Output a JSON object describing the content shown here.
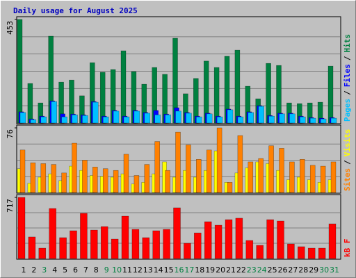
{
  "chart_data": {
    "type": "bar",
    "title": "Daily usage for August 2025",
    "categories": [
      "1",
      "2",
      "3",
      "4",
      "5",
      "6",
      "7",
      "8",
      "9",
      "10",
      "11",
      "12",
      "13",
      "14",
      "15",
      "16",
      "17",
      "18",
      "19",
      "20",
      "21",
      "22",
      "23",
      "24",
      "25",
      "26",
      "27",
      "28",
      "29",
      "30",
      "31"
    ],
    "category_colors": [
      "#000000",
      "#000000",
      "#008040",
      "#000000",
      "#000000",
      "#000000",
      "#000000",
      "#000000",
      "#008040",
      "#008040",
      "#000000",
      "#000000",
      "#000000",
      "#000000",
      "#000000",
      "#008040",
      "#008040",
      "#000000",
      "#000000",
      "#000000",
      "#000000",
      "#000000",
      "#008040",
      "#008040",
      "#000000",
      "#000000",
      "#000000",
      "#000000",
      "#000000",
      "#008040",
      "#008040"
    ],
    "legend_separator": "/",
    "panels": [
      {
        "ylim": [
          0,
          453
        ],
        "yticks": [
          453
        ],
        "series": [
          {
            "name": "Hits",
            "color": "#008040",
            "values": [
              453,
              173,
              88,
              380,
              179,
              188,
              119,
              264,
              222,
              234,
              316,
              225,
              170,
              243,
              213,
              371,
              128,
              195,
              271,
              243,
              292,
              319,
              161,
              106,
              261,
              252,
              88,
              85,
              88,
              91,
              249
            ]
          },
          {
            "name": "Files",
            "color": "#0000ff",
            "values": [
              49,
              18,
              30,
              97,
              40,
              39,
              36,
              94,
              30,
              55,
              30,
              55,
              46,
              55,
              39,
              67,
              46,
              30,
              43,
              30,
              61,
              30,
              49,
              76,
              33,
              43,
              43,
              30,
              24,
              21,
              24
            ]
          },
          {
            "name": "Pages",
            "color": "#00c0ff",
            "values": [
              46,
              15,
              27,
              94,
              27,
              36,
              33,
              91,
              27,
              52,
              27,
              52,
              43,
              36,
              36,
              52,
              43,
              27,
              40,
              27,
              58,
              27,
              46,
              73,
              30,
              40,
              40,
              27,
              21,
              18,
              21
            ]
          }
        ]
      },
      {
        "ylim": [
          0,
          76
        ],
        "yticks": [
          76
        ],
        "series": [
          {
            "name": "Visits",
            "color": "#ffff00",
            "values": [
              28,
              11,
              18,
              22,
              14,
              31,
              26,
              20,
              19,
              18,
              22,
              10,
              12,
              22,
              36,
              18,
              26,
              18,
              26,
              49,
              12,
              23,
              29,
              36,
              34,
              26,
              15,
              18,
              15,
              12,
              15
            ]
          },
          {
            "name": "Sites",
            "color": "#ff8000",
            "values": [
              50,
              35,
              34,
              33,
              23,
              58,
              38,
              30,
              28,
              26,
              45,
              20,
              33,
              60,
              26,
              71,
              56,
              39,
              50,
              76,
              12,
              67,
              36,
              40,
              55,
              52,
              36,
              39,
              32,
              31,
              36
            ]
          }
        ]
      },
      {
        "ylim": [
          0,
          717
        ],
        "yticks": [
          717
        ],
        "series": [
          {
            "name": "kB F",
            "color": "#ff0000",
            "values": [
              717,
              253,
              122,
              587,
              245,
              326,
              530,
              334,
              375,
              228,
              497,
              342,
              245,
              326,
              342,
              595,
              179,
              301,
              432,
              391,
              456,
              473,
              212,
              155,
              456,
              440,
              171,
              139,
              122,
              122,
              407
            ]
          }
        ]
      }
    ]
  }
}
